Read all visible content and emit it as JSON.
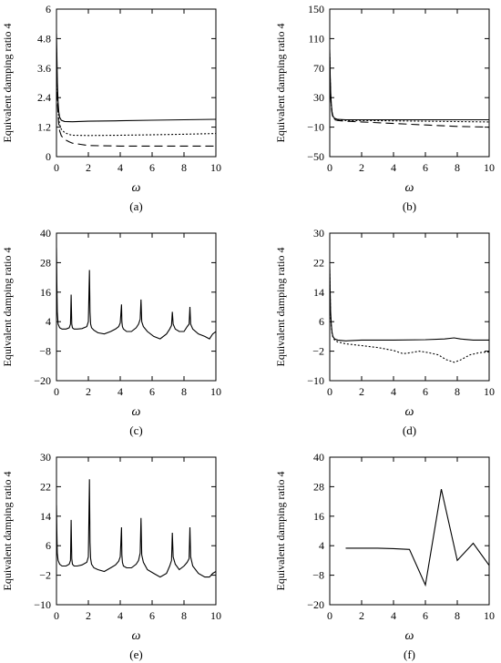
{
  "y_label": "Equivalent damping ratio 4",
  "x_label": "ω",
  "panels": [
    {
      "id": "a",
      "caption": "(a)",
      "chart_data": {
        "type": "line",
        "xlim": [
          0,
          10
        ],
        "ylim": [
          0,
          6
        ],
        "xticks": [
          "0",
          "2",
          "4",
          "6",
          "8",
          "10"
        ],
        "yticks": [
          "0",
          "1.2",
          "2.4",
          "3.6",
          "4.8",
          "6"
        ],
        "ylabel": "Equivalent damping ratio 4",
        "xlabel": "ω",
        "series": [
          {
            "style": "solid",
            "x": [
              0,
              0.03,
              0.06,
              0.1,
              0.15,
              0.2,
              0.3,
              0.5,
              1,
              2,
              4,
              6,
              8,
              10
            ],
            "y": [
              5.0,
              4.0,
              3.0,
              2.2,
              1.8,
              1.6,
              1.48,
              1.43,
              1.42,
              1.44,
              1.46,
              1.48,
              1.5,
              1.52
            ]
          },
          {
            "style": "dotted",
            "x": [
              0,
              0.03,
              0.06,
              0.1,
              0.15,
              0.2,
              0.3,
              0.5,
              0.8,
              1,
              2,
              4,
              6,
              8,
              10
            ],
            "y": [
              4.4,
              3.3,
              2.5,
              1.9,
              1.5,
              1.3,
              1.12,
              0.98,
              0.9,
              0.87,
              0.86,
              0.87,
              0.89,
              0.91,
              0.94
            ]
          },
          {
            "style": "dashed",
            "x": [
              0,
              0.03,
              0.06,
              0.1,
              0.15,
              0.2,
              0.3,
              0.5,
              0.8,
              1,
              1.5,
              2,
              4,
              6,
              8,
              10
            ],
            "y": [
              4.2,
              3.1,
              2.3,
              1.7,
              1.3,
              1.05,
              0.85,
              0.7,
              0.6,
              0.55,
              0.5,
              0.45,
              0.43,
              0.43,
              0.43,
              0.43
            ]
          }
        ]
      }
    },
    {
      "id": "b",
      "caption": "(b)",
      "chart_data": {
        "type": "line",
        "xlim": [
          0,
          10
        ],
        "ylim": [
          -50,
          150
        ],
        "xticks": [
          "0",
          "2",
          "4",
          "6",
          "8",
          "10"
        ],
        "yticks": [
          "−50",
          "−10",
          "30",
          "70",
          "110",
          "150"
        ],
        "ylabel": "Equivalent damping ratio 4",
        "xlabel": "ω",
        "series": [
          {
            "style": "solid",
            "x": [
              0,
              0.03,
              0.06,
              0.1,
              0.15,
              0.2,
              0.3,
              0.5,
              1,
              2,
              4,
              6,
              8,
              10
            ],
            "y": [
              95,
              60,
              35,
              20,
              10,
              5,
              2,
              0.5,
              0,
              0,
              0,
              0,
              0,
              0
            ]
          },
          {
            "style": "dotted",
            "x": [
              0,
              0.03,
              0.06,
              0.1,
              0.15,
              0.2,
              0.3,
              0.5,
              1,
              2,
              4,
              6,
              8,
              10
            ],
            "y": [
              90,
              55,
              32,
              18,
              9,
              4,
              1,
              0,
              -1,
              -1,
              -1.5,
              -2,
              -2.5,
              -3
            ]
          },
          {
            "style": "dashed",
            "x": [
              0,
              0.03,
              0.06,
              0.1,
              0.15,
              0.2,
              0.3,
              0.5,
              1,
              2,
              4,
              6,
              8,
              10
            ],
            "y": [
              85,
              50,
              30,
              16,
              8,
              3,
              0,
              -1,
              -2,
              -3,
              -5,
              -7,
              -9,
              -10
            ]
          }
        ]
      }
    },
    {
      "id": "c",
      "caption": "(c)",
      "chart_data": {
        "type": "line",
        "xlim": [
          0,
          10
        ],
        "ylim": [
          -20,
          40
        ],
        "xticks": [
          "0",
          "2",
          "4",
          "6",
          "8",
          "10"
        ],
        "yticks": [
          "−20",
          "−8",
          "4",
          "16",
          "28",
          "40"
        ],
        "ylabel": "Equivalent damping ratio 4",
        "xlabel": "ω",
        "series": [
          {
            "style": "solid",
            "x": [
              0,
              0.02,
              0.05,
              0.1,
              0.2,
              0.35,
              0.6,
              0.8,
              0.88,
              0.92,
              0.96,
              1.0,
              1.1,
              1.3,
              1.6,
              1.9,
              2.0,
              2.07,
              2.1,
              2.14,
              2.2,
              2.35,
              2.6,
              3.0,
              3.4,
              3.7,
              3.9,
              4.0,
              4.08,
              4.1,
              4.14,
              4.2,
              4.4,
              4.7,
              5.0,
              5.15,
              5.25,
              5.3,
              5.35,
              5.45,
              5.7,
              6.1,
              6.5,
              6.9,
              7.1,
              7.22,
              7.27,
              7.32,
              7.45,
              7.7,
              8.0,
              8.2,
              8.32,
              8.37,
              8.42,
              8.55,
              8.9,
              9.3,
              9.6,
              9.8,
              10
            ],
            "y": [
              34,
              20,
              8,
              3,
              1.5,
              1,
              1,
              1.5,
              3,
              15,
              3,
              1.5,
              1,
              1,
              1.2,
              2,
              4,
              25,
              8,
              3,
              1.5,
              0.5,
              -0.5,
              -1,
              0,
              1,
              2,
              3.5,
              11,
              4,
              2,
              1,
              0,
              0,
              1.5,
              3,
              5,
              13,
              4,
              2,
              0,
              -2,
              -3,
              -1,
              1,
              2.5,
              8,
              3,
              1,
              0,
              0,
              2,
              3,
              10,
              3,
              1,
              -1,
              -2,
              -3,
              -1,
              0
            ]
          }
        ]
      }
    },
    {
      "id": "d",
      "caption": "(d)",
      "chart_data": {
        "type": "line",
        "xlim": [
          0,
          10
        ],
        "ylim": [
          -10,
          30
        ],
        "xticks": [
          "0",
          "2",
          "4",
          "6",
          "8",
          "10"
        ],
        "yticks": [
          "−10",
          "−2",
          "6",
          "14",
          "22",
          "30"
        ],
        "ylabel": "Equivalent damping ratio 4",
        "xlabel": "ω",
        "series": [
          {
            "style": "solid",
            "x": [
              0,
              0.02,
              0.05,
              0.1,
              0.15,
              0.2,
              0.3,
              0.5,
              1,
              2,
              4,
              6,
              7.2,
              7.8,
              8.2,
              9,
              10
            ],
            "y": [
              21,
              15,
              9,
              5,
              3,
              2,
              1.3,
              1.0,
              0.8,
              1.0,
              1.0,
              1.1,
              1.3,
              1.6,
              1.3,
              1.0,
              1.0
            ]
          },
          {
            "style": "dotted",
            "x": [
              0,
              0.02,
              0.05,
              0.1,
              0.15,
              0.2,
              0.3,
              0.5,
              1,
              2,
              3,
              4,
              4.6,
              5.1,
              5.6,
              6.2,
              6.8,
              7.3,
              7.8,
              8.2,
              8.8,
              9.4,
              10
            ],
            "y": [
              20,
              14,
              8,
              4.5,
              2.5,
              1.8,
              1.0,
              0.5,
              0,
              -0.5,
              -1.0,
              -1.8,
              -2.7,
              -2.4,
              -2.0,
              -2.4,
              -3.0,
              -4.3,
              -5.0,
              -4.4,
              -3.0,
              -2.4,
              -2.2
            ]
          }
        ]
      }
    },
    {
      "id": "e",
      "caption": "(e)",
      "chart_data": {
        "type": "line",
        "xlim": [
          0,
          10
        ],
        "ylim": [
          -10,
          30
        ],
        "xticks": [
          "0",
          "2",
          "4",
          "6",
          "8",
          "10"
        ],
        "yticks": [
          "−10",
          "−2",
          "6",
          "14",
          "22",
          "30"
        ],
        "ylabel": "Equivalent damping ratio 4",
        "xlabel": "ω",
        "series": [
          {
            "style": "solid",
            "x": [
              0,
              0.02,
              0.05,
              0.1,
              0.2,
              0.35,
              0.6,
              0.8,
              0.88,
              0.92,
              0.96,
              1.0,
              1.1,
              1.3,
              1.6,
              1.9,
              2.0,
              2.07,
              2.1,
              2.14,
              2.2,
              2.35,
              2.6,
              3.0,
              3.4,
              3.7,
              3.9,
              4.0,
              4.08,
              4.1,
              4.14,
              4.2,
              4.4,
              4.7,
              5.0,
              5.15,
              5.25,
              5.3,
              5.35,
              5.45,
              5.7,
              6.1,
              6.5,
              6.9,
              7.1,
              7.22,
              7.27,
              7.32,
              7.45,
              7.7,
              8.0,
              8.2,
              8.32,
              8.37,
              8.42,
              8.55,
              8.9,
              9.3,
              9.6,
              9.8,
              10
            ],
            "y": [
              17,
              10,
              4,
              2,
              1,
              0.5,
              0.5,
              1,
              2,
              13,
              2.5,
              1,
              0.5,
              0.5,
              0.8,
              1.5,
              3,
              24,
              7,
              2.5,
              1,
              0,
              -0.5,
              -1,
              0,
              0.8,
              1.8,
              3,
              11,
              3.5,
              1.5,
              0.5,
              0,
              0,
              1,
              2,
              4,
              13.5,
              3.5,
              1.5,
              -0.5,
              -1.5,
              -2.5,
              -1.5,
              0.5,
              2,
              9.5,
              3,
              1,
              -0.5,
              0.5,
              1.5,
              2.5,
              11,
              3,
              0.5,
              -1.5,
              -2.5,
              -2.5,
              -1.5,
              -1
            ]
          }
        ]
      }
    },
    {
      "id": "f",
      "caption": "(f)",
      "chart_data": {
        "type": "line",
        "xlim": [
          0,
          10
        ],
        "ylim": [
          -20,
          40
        ],
        "xticks": [
          "0",
          "2",
          "4",
          "6",
          "8",
          "10"
        ],
        "yticks": [
          "−20",
          "−8",
          "4",
          "16",
          "28",
          "40"
        ],
        "ylabel": "Equivalent damping ratio 4",
        "xlabel": "ω",
        "series": [
          {
            "style": "solid",
            "x": [
              1,
              2,
              3,
              4,
              5,
              6,
              7,
              8,
              9,
              10
            ],
            "y": [
              3,
              3,
              3,
              2.8,
              2.5,
              -12,
              27,
              -2,
              5,
              -4
            ]
          }
        ]
      }
    }
  ]
}
